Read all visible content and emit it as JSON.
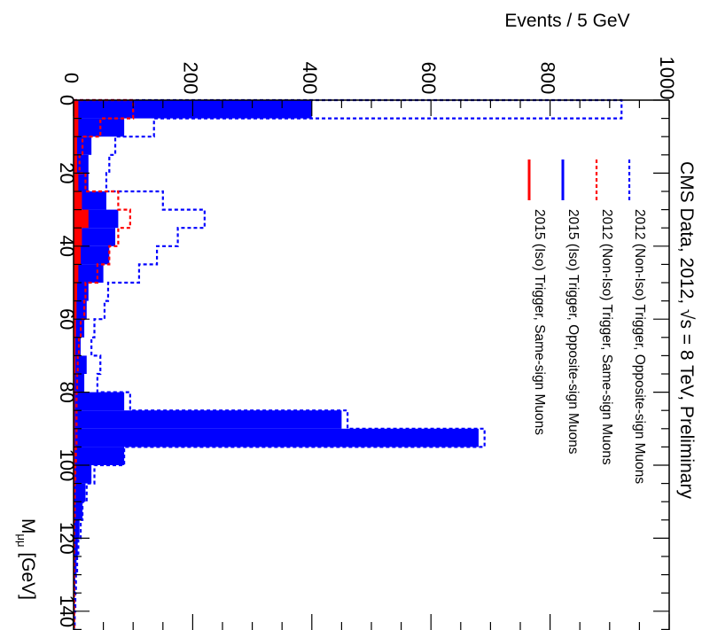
{
  "chart_data": {
    "type": "bar",
    "orientation": "rotated-90-clockwise",
    "title": "CMS Data, 2012, √s = 8 TeV, Preliminary",
    "xlabel": "Mμμ [GeV]",
    "xlabel_main": "M",
    "xlabel_sub": "μμ",
    "xlabel_unit": " [GeV]",
    "ylabel": "Events / 5 GeV",
    "xlim": [
      0,
      145
    ],
    "ylim": [
      0,
      1000
    ],
    "x_ticks": [
      "0",
      "20",
      "40",
      "60",
      "80",
      "100",
      "120",
      "140"
    ],
    "y_ticks": [
      "0",
      "200",
      "400",
      "600",
      "800",
      "1000"
    ],
    "bin_width": 5,
    "bin_edges_start": [
      0,
      5,
      10,
      15,
      20,
      25,
      30,
      35,
      40,
      45,
      50,
      55,
      60,
      65,
      70,
      75,
      80,
      85,
      90,
      95,
      100,
      105,
      110,
      115,
      120,
      125,
      130,
      135,
      140
    ],
    "legend_position": "top-right",
    "series": [
      {
        "name": "2012 (Non-Iso) Trigger, Opposite-sign Muons",
        "style": "dashed-line",
        "color": "#0000ff",
        "values": [
          920,
          135,
          70,
          60,
          55,
          150,
          220,
          175,
          140,
          110,
          58,
          52,
          35,
          30,
          45,
          40,
          95,
          460,
          690,
          85,
          35,
          22,
          15,
          12,
          8,
          6,
          4,
          3,
          2
        ]
      },
      {
        "name": "2012 (Non-Iso) Trigger, Same-sign Muons",
        "style": "dashed-line",
        "color": "#ff0000",
        "values": [
          100,
          45,
          15,
          10,
          20,
          75,
          95,
          75,
          60,
          40,
          20,
          18,
          12,
          9,
          7,
          6,
          5,
          5,
          5,
          4,
          3,
          2,
          2,
          1,
          1,
          1,
          1,
          1,
          1
        ]
      },
      {
        "name": "2015 (Iso) Trigger, Opposite-sign Muons",
        "style": "filled",
        "color": "#0000ff",
        "values": [
          400,
          85,
          30,
          25,
          25,
          55,
          75,
          70,
          60,
          50,
          25,
          22,
          18,
          12,
          22,
          18,
          85,
          450,
          680,
          85,
          30,
          20,
          15,
          10,
          7,
          5,
          3,
          2,
          1
        ]
      },
      {
        "name": "2015 (Iso) Trigger, Same-sign Muons",
        "style": "filled",
        "color": "#ff0000",
        "values": [
          8,
          8,
          6,
          6,
          8,
          14,
          25,
          14,
          12,
          8,
          6,
          5,
          4,
          3,
          3,
          2,
          2,
          2,
          2,
          2,
          2,
          1,
          1,
          1,
          1,
          1,
          1,
          1,
          1
        ]
      }
    ]
  }
}
